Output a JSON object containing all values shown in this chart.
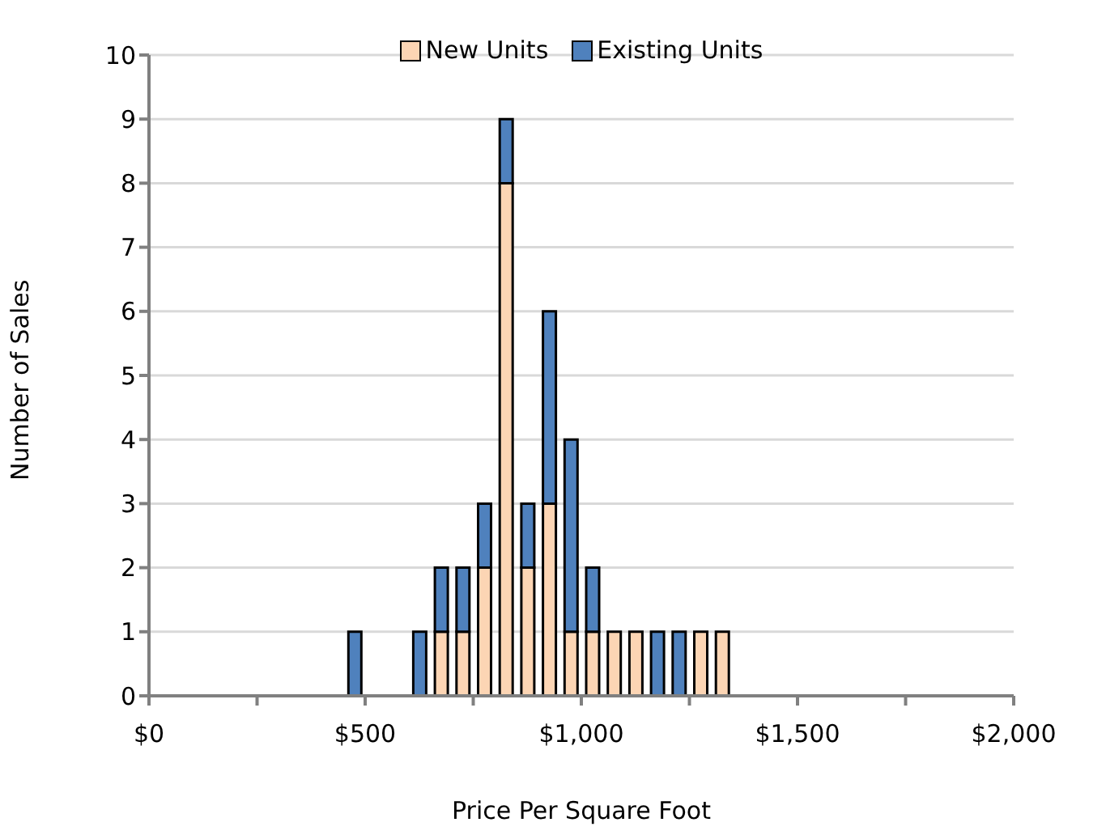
{
  "chart_data": {
    "type": "bar",
    "stacked": true,
    "xlabel": "Price Per Square Foot",
    "ylabel": "Number of Sales",
    "x": [
      475,
      525,
      575,
      625,
      675,
      725,
      775,
      825,
      875,
      925,
      975,
      1025,
      1075,
      1125,
      1175,
      1225,
      1275,
      1325
    ],
    "series": [
      {
        "name": "New Units",
        "color": "#fcd5b4",
        "values": [
          0,
          0,
          0,
          0,
          1,
          1,
          2,
          8,
          2,
          3,
          1,
          1,
          1,
          1,
          0,
          0,
          1,
          1
        ]
      },
      {
        "name": "Existing Units",
        "color": "#4f81bd",
        "values": [
          1,
          0,
          0,
          1,
          1,
          1,
          1,
          1,
          1,
          3,
          3,
          1,
          0,
          0,
          1,
          1,
          0,
          0
        ]
      }
    ],
    "xlim": [
      0,
      2000
    ],
    "xticks": [
      {
        "value": 0,
        "label": "$0"
      },
      {
        "value": 250,
        "label": null
      },
      {
        "value": 500,
        "label": "$500"
      },
      {
        "value": 750,
        "label": null
      },
      {
        "value": 1000,
        "label": "$1,000"
      },
      {
        "value": 1250,
        "label": null
      },
      {
        "value": 1500,
        "label": "$1,500"
      },
      {
        "value": 1750,
        "label": null
      },
      {
        "value": 2000,
        "label": "$2,000"
      }
    ],
    "ylim": [
      0,
      10
    ],
    "yticks": [
      0,
      1,
      2,
      3,
      4,
      5,
      6,
      7,
      8,
      9,
      10
    ],
    "grid": "y",
    "legend": "top"
  }
}
